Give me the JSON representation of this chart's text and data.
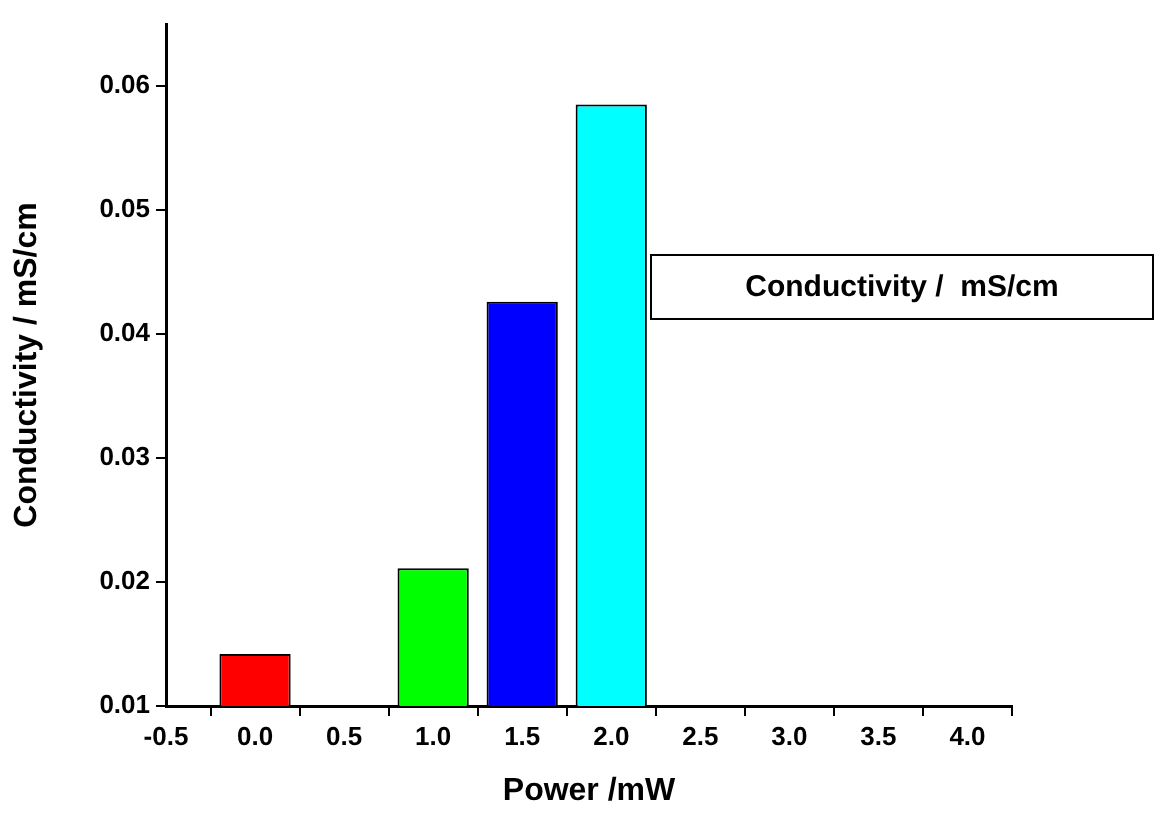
{
  "chart_data": {
    "type": "bar",
    "xlabel": "Power /mW",
    "ylabel": "Conductivity / mS/cm",
    "x": [
      0.0,
      1.0,
      1.5,
      2.0
    ],
    "series": [
      {
        "name": "Conductivity /  mS/cm",
        "colors": [
          "#ff0000",
          "#00ff00",
          "#0000ff",
          "#00ffff"
        ],
        "values": [
          0.0142,
          0.0211,
          0.0426,
          0.0585
        ]
      }
    ],
    "xlim": [
      -0.5,
      4.25
    ],
    "xticks": [
      {
        "value": -0.5,
        "label": "-0.5"
      },
      {
        "value": 0,
        "label": "0.0"
      },
      {
        "value": 0.5,
        "label": "0.5"
      },
      {
        "value": 1,
        "label": "1.0"
      },
      {
        "value": 1.5,
        "label": "1.5"
      },
      {
        "value": 2,
        "label": "2.0"
      },
      {
        "value": 2.5,
        "label": "2.5"
      },
      {
        "value": 3,
        "label": "3.0"
      },
      {
        "value": 3.5,
        "label": "3.5"
      },
      {
        "value": 4,
        "label": "4.0"
      }
    ],
    "ylim": [
      0.01,
      0.065
    ],
    "yticks": [
      0.01,
      0.02,
      0.03,
      0.04,
      0.05,
      0.06
    ],
    "grid": false,
    "legend": "right"
  }
}
